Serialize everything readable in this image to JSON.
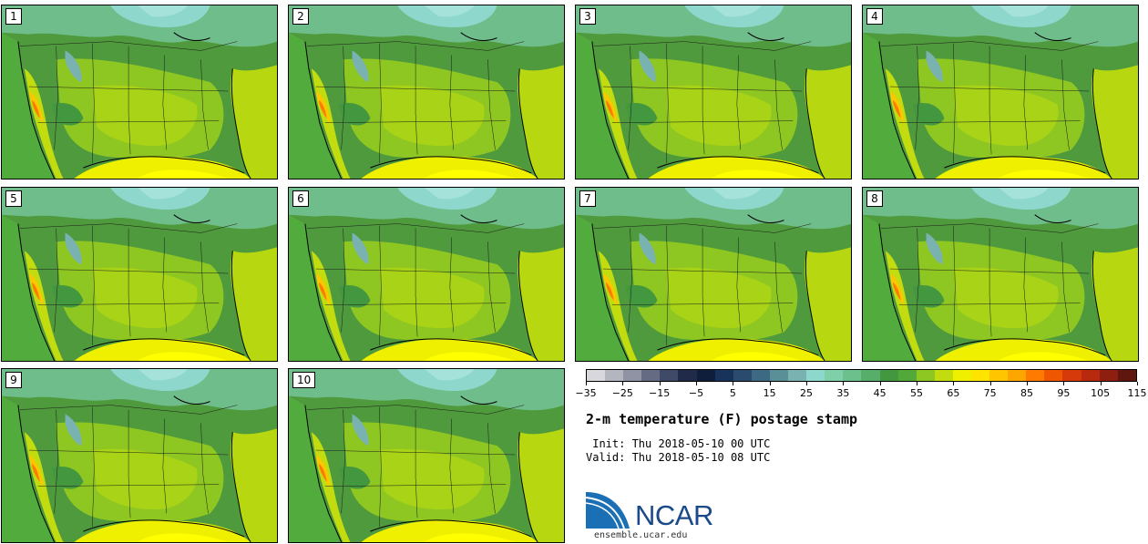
{
  "panels": [
    {
      "label": "1"
    },
    {
      "label": "2"
    },
    {
      "label": "3"
    },
    {
      "label": "4"
    },
    {
      "label": "5"
    },
    {
      "label": "6"
    },
    {
      "label": "7"
    },
    {
      "label": "8"
    },
    {
      "label": "9"
    },
    {
      "label": "10"
    }
  ],
  "colorbar": {
    "colors": [
      "#d8d8dc",
      "#b4b6bf",
      "#8f93a3",
      "#646b82",
      "#3e4a66",
      "#1f2b48",
      "#0f1e3a",
      "#18325a",
      "#2a4b6e",
      "#3d6a82",
      "#5b8f98",
      "#79b2b0",
      "#8ed7cc",
      "#7fcfa8",
      "#6cc08c",
      "#57ad6a",
      "#43983f",
      "#53a83a",
      "#8fc722",
      "#c3dc10",
      "#eef000",
      "#ffe400",
      "#ffc600",
      "#ffa500",
      "#ff7a00",
      "#ee5600",
      "#d63a0a",
      "#b82a0e",
      "#8e1e10",
      "#5e160e"
    ],
    "tick_labels": [
      "−35",
      "−25",
      "−15",
      "−5",
      "5",
      "15",
      "25",
      "35",
      "45",
      "55",
      "65",
      "75",
      "85",
      "95",
      "105",
      "115"
    ]
  },
  "title": "2-m temperature (F) postage stamp",
  "init_text": " Init: Thu 2018-05-10 00 UTC",
  "valid_text": "Valid: Thu 2018-05-10 08 UTC",
  "logo": {
    "text": "NCAR",
    "website": "ensemble.ucar.edu"
  }
}
